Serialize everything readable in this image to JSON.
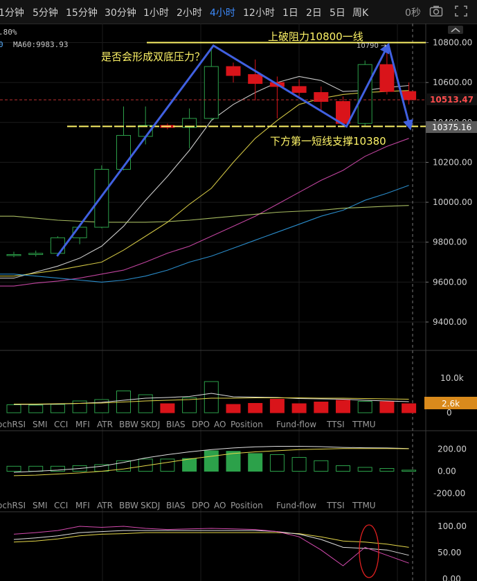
{
  "toolbar": {
    "timeframes": [
      "1分钟",
      "5分钟",
      "15分钟",
      "30分钟",
      "1小时",
      "2小时",
      "4小时",
      "12小时",
      "1日",
      "2日",
      "5日",
      "周K"
    ],
    "active_index": 6,
    "countdown": "0秒",
    "icons": [
      "camera-icon",
      "fullscreen-icon"
    ]
  },
  "legend": {
    "prefix": ".80%",
    "ma_zero": "0",
    "ma60": "MA60:9983.93"
  },
  "price_axis": {
    "ticks": [
      "10800.00",
      "10600.00",
      "10400.00",
      "10200.00",
      "10000.00",
      "9800.00",
      "9600.00",
      "9400.00"
    ]
  },
  "price_tags": {
    "current": "10513.47",
    "support": "10375.16",
    "collapse_icon": "chevron-up-icon"
  },
  "annotations": {
    "resistance": "上破阻力10800一线",
    "peak_label": "10790 →",
    "question": "是否会形成双底压力？",
    "support": "下方第一短线支撑10380"
  },
  "volume_axis": {
    "ticks": [
      "10.0k",
      "0"
    ],
    "tag": "2.6k"
  },
  "indicator_tabs": [
    "ochRSI",
    "SMI",
    "CCI",
    "MFI",
    "ATR",
    "BBW",
    "SKDJ",
    "BIAS",
    "DPO",
    "AO",
    "Position",
    "Fund-flow",
    "TTSI",
    "TTMU"
  ],
  "macd_axis": {
    "ticks": [
      "200.00",
      "0.00",
      "-200.00"
    ]
  },
  "kdj_axis": {
    "ticks": [
      "100.00",
      "50.00",
      "0.00"
    ]
  },
  "colors": {
    "up": "#2ca14a",
    "down": "#d9141a",
    "ma5": "#e0e0e0",
    "ma10": "#e6d84a",
    "ma20": "#d64bb0",
    "ma30": "#2f9be0",
    "ma60": "#b9cf6b",
    "annotation": "#fff568",
    "arrow": "#4060e0",
    "accent": "#3d8bfd"
  },
  "chart_data": {
    "type": "candlestick",
    "candles": [
      {
        "o": 9735,
        "h": 9752,
        "l": 9725,
        "c": 9738
      },
      {
        "o": 9738,
        "h": 9758,
        "l": 9728,
        "c": 9744
      },
      {
        "o": 9744,
        "h": 9830,
        "l": 9740,
        "c": 9822
      },
      {
        "o": 9822,
        "h": 9890,
        "l": 9790,
        "c": 9875
      },
      {
        "o": 9875,
        "h": 10185,
        "l": 9870,
        "c": 10165
      },
      {
        "o": 10165,
        "h": 10480,
        "l": 10160,
        "c": 10335
      },
      {
        "o": 10330,
        "h": 10480,
        "l": 10290,
        "c": 10385
      },
      {
        "o": 10385,
        "h": 10395,
        "l": 10365,
        "c": 10375
      },
      {
        "o": 10375,
        "h": 10470,
        "l": 10270,
        "c": 10420
      },
      {
        "o": 10420,
        "h": 10770,
        "l": 10410,
        "c": 10680
      },
      {
        "o": 10680,
        "h": 10700,
        "l": 10600,
        "c": 10635
      },
      {
        "o": 10640,
        "h": 10715,
        "l": 10510,
        "c": 10595
      },
      {
        "o": 10600,
        "h": 10630,
        "l": 10420,
        "c": 10580
      },
      {
        "o": 10580,
        "h": 10615,
        "l": 10530,
        "c": 10550
      },
      {
        "o": 10550,
        "h": 10580,
        "l": 10460,
        "c": 10505
      },
      {
        "o": 10505,
        "h": 10530,
        "l": 10380,
        "c": 10395
      },
      {
        "o": 10395,
        "h": 10710,
        "l": 10380,
        "c": 10690
      },
      {
        "o": 10690,
        "h": 10790,
        "l": 10540,
        "c": 10555
      },
      {
        "o": 10555,
        "h": 10600,
        "l": 10490,
        "c": 10513.47
      }
    ],
    "ma_lines": [
      {
        "name": "MA5",
        "values": [
          9620,
          9650,
          9680,
          9720,
          9780,
          9880,
          10010,
          10130,
          10260,
          10410,
          10490,
          10550,
          10600,
          10630,
          10610,
          10555,
          10560,
          10575,
          10585
        ]
      },
      {
        "name": "MA10",
        "values": [
          9630,
          9645,
          9660,
          9680,
          9700,
          9760,
          9830,
          9900,
          9990,
          10070,
          10200,
          10320,
          10410,
          10490,
          10520,
          10540,
          10550,
          10555,
          10560
        ]
      },
      {
        "name": "MA20",
        "values": [
          9580,
          9595,
          9605,
          9620,
          9640,
          9660,
          9700,
          9745,
          9780,
          9830,
          9880,
          9930,
          9990,
          10050,
          10110,
          10160,
          10230,
          10280,
          10320
        ]
      },
      {
        "name": "MA30",
        "values": [
          9640,
          9630,
          9620,
          9610,
          9600,
          9610,
          9630,
          9660,
          9700,
          9730,
          9770,
          9810,
          9850,
          9890,
          9930,
          9960,
          10010,
          10045,
          10085
        ]
      },
      {
        "name": "MA60",
        "values": [
          9930,
          9920,
          9910,
          9905,
          9900,
          9900,
          9900,
          9903,
          9910,
          9920,
          9930,
          9940,
          9950,
          9955,
          9960,
          9970,
          9975,
          9980,
          9983.93
        ]
      }
    ],
    "volume": [
      2.3,
      2.2,
      2.4,
      3.4,
      3.8,
      6.3,
      5.2,
      2.6,
      4.3,
      9.0,
      2.4,
      2.7,
      3.9,
      2.6,
      3.1,
      3.6,
      3.3,
      3.2,
      2.6
    ],
    "volume_ma": [
      2.4,
      2.4,
      2.5,
      2.7,
      3.0,
      3.6,
      4.2,
      4.4,
      4.7,
      5.6,
      4.6,
      4.5,
      4.4,
      4.1,
      4.0,
      3.9,
      3.6,
      3.4,
      3.2
    ],
    "volume_ma2": [
      2.5,
      2.5,
      2.6,
      2.7,
      2.8,
      3.1,
      3.4,
      3.6,
      3.8,
      4.2,
      4.2,
      4.3,
      4.3,
      4.3,
      4.2,
      4.2,
      4.1,
      4.0,
      3.9
    ],
    "macd_hist": [
      45,
      45,
      45,
      50,
      60,
      95,
      110,
      110,
      115,
      185,
      180,
      160,
      150,
      125,
      95,
      50,
      35,
      25,
      10
    ],
    "macd_dif": [
      -10,
      0,
      10,
      25,
      45,
      80,
      120,
      150,
      175,
      195,
      210,
      220,
      225,
      225,
      222,
      215,
      212,
      210,
      205
    ],
    "macd_dea": [
      -40,
      -35,
      -25,
      -15,
      0,
      20,
      50,
      80,
      110,
      135,
      160,
      175,
      185,
      195,
      200,
      205,
      205,
      205,
      203
    ],
    "kdj_k": [
      85,
      88,
      92,
      100,
      98,
      100,
      96,
      94,
      95,
      96,
      95,
      94,
      90,
      80,
      55,
      25,
      60,
      45,
      30
    ],
    "kdj_d": [
      75,
      78,
      82,
      88,
      90,
      92,
      92,
      92,
      92,
      92,
      92,
      92,
      90,
      85,
      75,
      60,
      58,
      55,
      45
    ],
    "kdj_j": [
      70,
      72,
      76,
      82,
      85,
      86,
      88,
      88,
      88,
      88,
      88,
      88,
      88,
      86,
      80,
      72,
      70,
      66,
      60
    ],
    "resistance_level": 10800,
    "support_level": 10380,
    "price_range": [
      9330,
      10850
    ]
  }
}
